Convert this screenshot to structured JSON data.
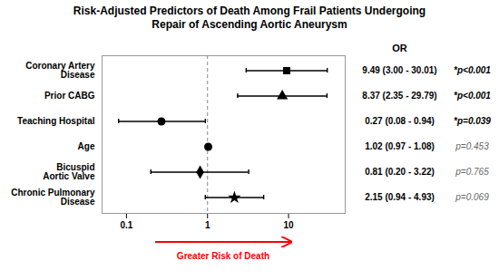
{
  "chart_data": {
    "type": "forest",
    "title": "Risk-Adjusted Predictors of Death Among Frail Patients Undergoing\nRepair of Ascending Aortic Aneurysm",
    "xlabel": "Greater Risk of Death",
    "xlabel_color": "#ff0000",
    "or_header": "OR",
    "categories": [
      "Coronary Artery\nDisease",
      "Prior CABG",
      "Teaching Hospital",
      "Age",
      "Bicuspid\nAortic Valve",
      "Chronic Pulmonary\nDisease"
    ],
    "values": [
      9.49,
      8.37,
      0.27,
      1.02,
      0.81,
      2.15
    ],
    "ci_low": [
      3.0,
      2.35,
      0.08,
      0.97,
      0.2,
      0.94
    ],
    "ci_high": [
      30.01,
      29.79,
      0.94,
      1.08,
      3.22,
      4.93
    ],
    "value_labels": [
      "9.49 (3.00 - 30.01)",
      "8.37 (2.35 - 29.79)",
      "0.27 (0.08 - 0.94)",
      "1.02 (0.97 - 1.08)",
      "0.81 (0.20 - 3.22)",
      "2.15 (0.94 - 4.93)"
    ],
    "p_labels": [
      "*p<0.001",
      "*p<0.001",
      "*p=0.039",
      "p=0.453",
      "p=0.765",
      "p=0.069"
    ],
    "p_bold": [
      true,
      true,
      true,
      false,
      false,
      false
    ],
    "p_colors": [
      "#000000",
      "#000000",
      "#000000",
      "#666666",
      "#666666",
      "#666666"
    ],
    "markers": [
      "square",
      "triangle",
      "circle",
      "circle",
      "diamond",
      "star"
    ],
    "color": "#000000",
    "reference_line": {
      "x": 1,
      "color": "#888888",
      "line_style": "dashed"
    },
    "log": "x",
    "xlim": [
      0.05,
      50
    ],
    "xticks": [
      0.1,
      1,
      10
    ],
    "grid": false
  }
}
